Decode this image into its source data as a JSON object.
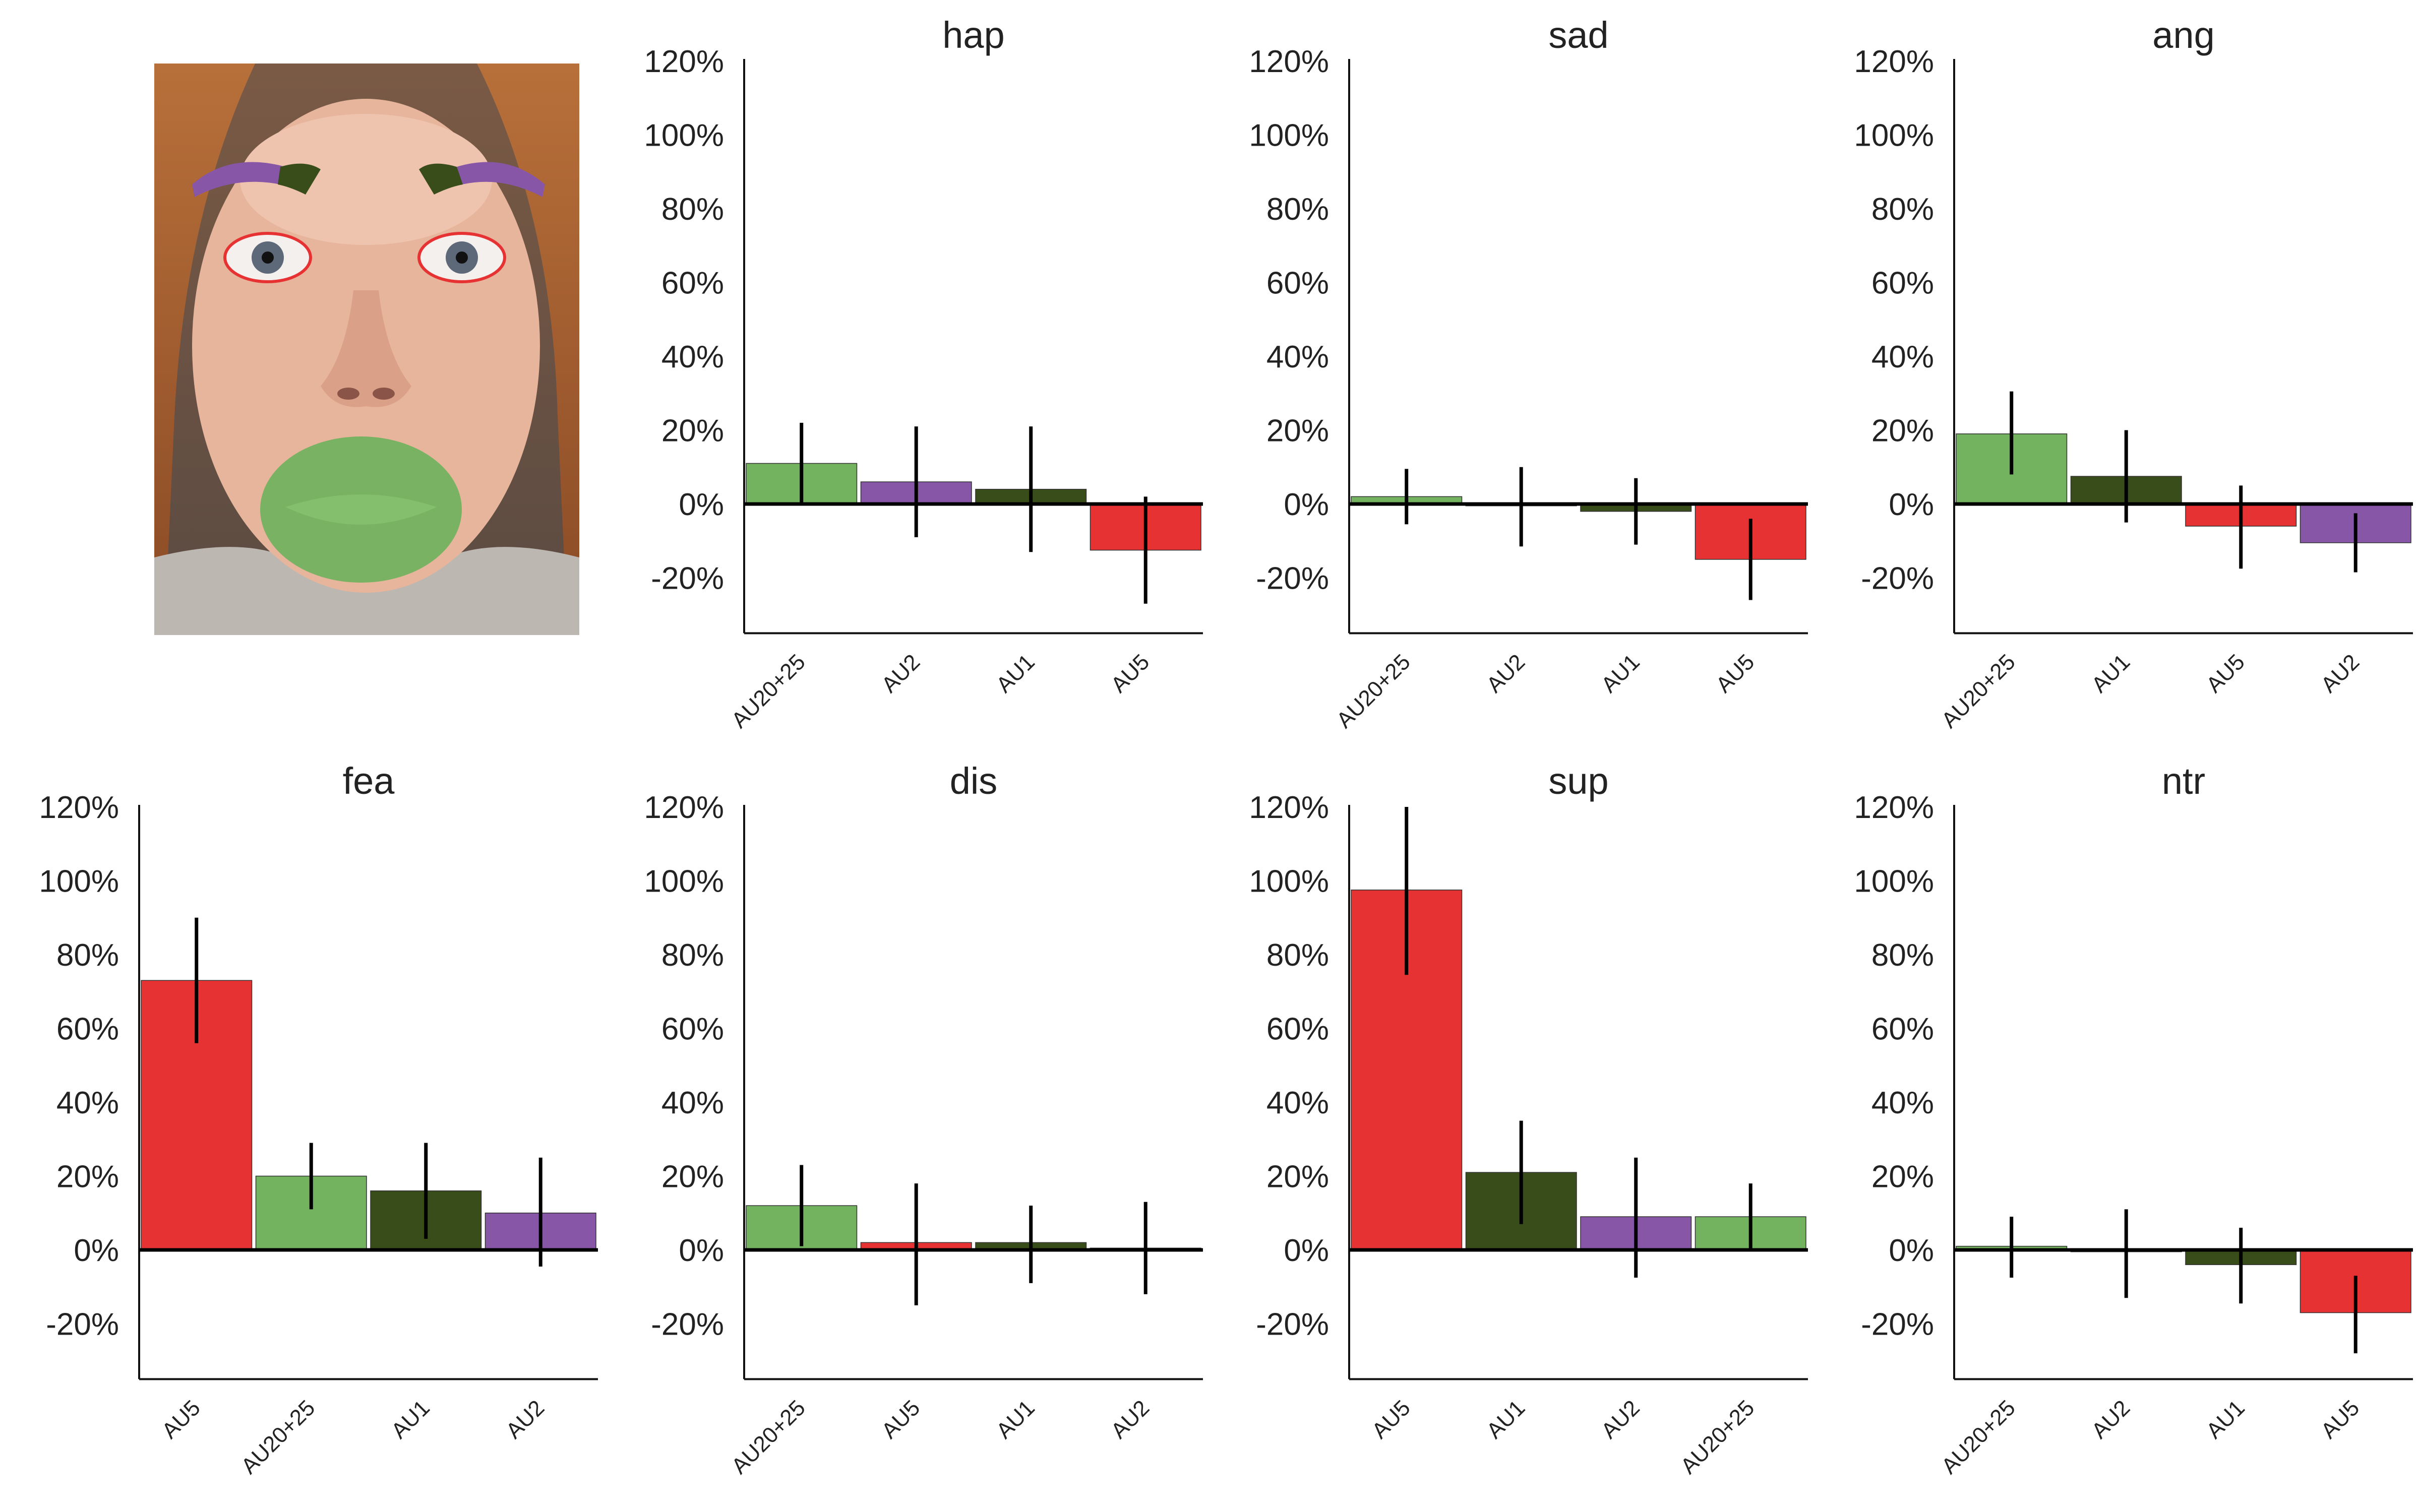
{
  "colors": {
    "AU5": "#e63232",
    "AU20+25": "#73b25f",
    "AU1": "#394d1b",
    "AU2": "#8856a7",
    "axis": "#111111",
    "error": "#000000"
  },
  "face_overlay": {
    "regions": [
      "AU2",
      "AU1",
      "AU5",
      "AU20+25"
    ]
  },
  "chart_data": [
    {
      "type": "bar",
      "title": "hap",
      "xlabel": "",
      "ylabel": "",
      "ylim": [
        -35,
        120
      ],
      "yticks": [
        -20,
        0,
        20,
        40,
        60,
        80,
        100,
        120
      ],
      "ytick_labels": [
        "-20%",
        "0%",
        "20%",
        "40%",
        "60%",
        "80%",
        "100%",
        "120%"
      ],
      "categories": [
        "AU20+25",
        "AU2",
        "AU1",
        "AU5"
      ],
      "values": [
        11,
        6,
        4,
        -12.5
      ],
      "error_low": [
        0,
        -9,
        -13,
        -27
      ],
      "error_high": [
        22,
        21,
        21,
        2
      ]
    },
    {
      "type": "bar",
      "title": "sad",
      "xlabel": "",
      "ylabel": "",
      "ylim": [
        -35,
        120
      ],
      "yticks": [
        -20,
        0,
        20,
        40,
        60,
        80,
        100,
        120
      ],
      "ytick_labels": [
        "-20%",
        "0%",
        "20%",
        "40%",
        "60%",
        "80%",
        "100%",
        "120%"
      ],
      "categories": [
        "AU20+25",
        "AU2",
        "AU1",
        "AU5"
      ],
      "values": [
        2,
        -0.5,
        -2,
        -15
      ],
      "error_low": [
        -5.5,
        -11.5,
        -11,
        -26
      ],
      "error_high": [
        9.5,
        10,
        7,
        -4
      ]
    },
    {
      "type": "bar",
      "title": "ang",
      "xlabel": "",
      "ylabel": "",
      "ylim": [
        -35,
        120
      ],
      "yticks": [
        -20,
        0,
        20,
        40,
        60,
        80,
        100,
        120
      ],
      "ytick_labels": [
        "-20%",
        "0%",
        "20%",
        "40%",
        "60%",
        "80%",
        "100%",
        "120%"
      ],
      "categories": [
        "AU20+25",
        "AU1",
        "AU5",
        "AU2"
      ],
      "values": [
        19,
        7.5,
        -6,
        -10.5
      ],
      "error_low": [
        8,
        -5,
        -17.5,
        -18.5
      ],
      "error_high": [
        30.5,
        20,
        5,
        -2.5
      ]
    },
    {
      "type": "bar",
      "title": "fea",
      "xlabel": "",
      "ylabel": "",
      "ylim": [
        -35,
        120
      ],
      "yticks": [
        -20,
        0,
        20,
        40,
        60,
        80,
        100,
        120
      ],
      "ytick_labels": [
        "-20%",
        "0%",
        "20%",
        "40%",
        "60%",
        "80%",
        "100%",
        "120%"
      ],
      "categories": [
        "AU5",
        "AU20+25",
        "AU1",
        "AU2"
      ],
      "values": [
        73,
        20,
        16,
        10
      ],
      "error_low": [
        56,
        11,
        3,
        -4.5
      ],
      "error_high": [
        90,
        29,
        29,
        25
      ]
    },
    {
      "type": "bar",
      "title": "dis",
      "xlabel": "",
      "ylabel": "",
      "ylim": [
        -35,
        120
      ],
      "yticks": [
        -20,
        0,
        20,
        40,
        60,
        80,
        100,
        120
      ],
      "ytick_labels": [
        "-20%",
        "0%",
        "20%",
        "40%",
        "60%",
        "80%",
        "100%",
        "120%"
      ],
      "categories": [
        "AU20+25",
        "AU5",
        "AU1",
        "AU2"
      ],
      "values": [
        12,
        2,
        2,
        0.5
      ],
      "error_low": [
        1,
        -15,
        -9,
        -12
      ],
      "error_high": [
        23,
        18,
        12,
        13
      ]
    },
    {
      "type": "bar",
      "title": "sup",
      "xlabel": "",
      "ylabel": "",
      "ylim": [
        -35,
        120
      ],
      "yticks": [
        -20,
        0,
        20,
        40,
        60,
        80,
        100,
        120
      ],
      "ytick_labels": [
        "-20%",
        "0%",
        "20%",
        "40%",
        "60%",
        "80%",
        "100%",
        "120%"
      ],
      "categories": [
        "AU5",
        "AU1",
        "AU2",
        "AU20+25"
      ],
      "values": [
        97.5,
        21,
        9,
        9
      ],
      "error_low": [
        74.5,
        7,
        -7.5,
        0
      ],
      "error_high": [
        120,
        35,
        25,
        18
      ]
    },
    {
      "type": "bar",
      "title": "ntr",
      "xlabel": "",
      "ylabel": "",
      "ylim": [
        -35,
        120
      ],
      "yticks": [
        -20,
        0,
        20,
        40,
        60,
        80,
        100,
        120
      ],
      "ytick_labels": [
        "-20%",
        "0%",
        "20%",
        "40%",
        "60%",
        "80%",
        "100%",
        "120%"
      ],
      "categories": [
        "AU20+25",
        "AU2",
        "AU1",
        "AU5"
      ],
      "values": [
        1,
        -0.5,
        -4,
        -17
      ],
      "error_low": [
        -7.5,
        -13,
        -14.5,
        -28
      ],
      "error_high": [
        9,
        11,
        6,
        -7
      ]
    }
  ]
}
